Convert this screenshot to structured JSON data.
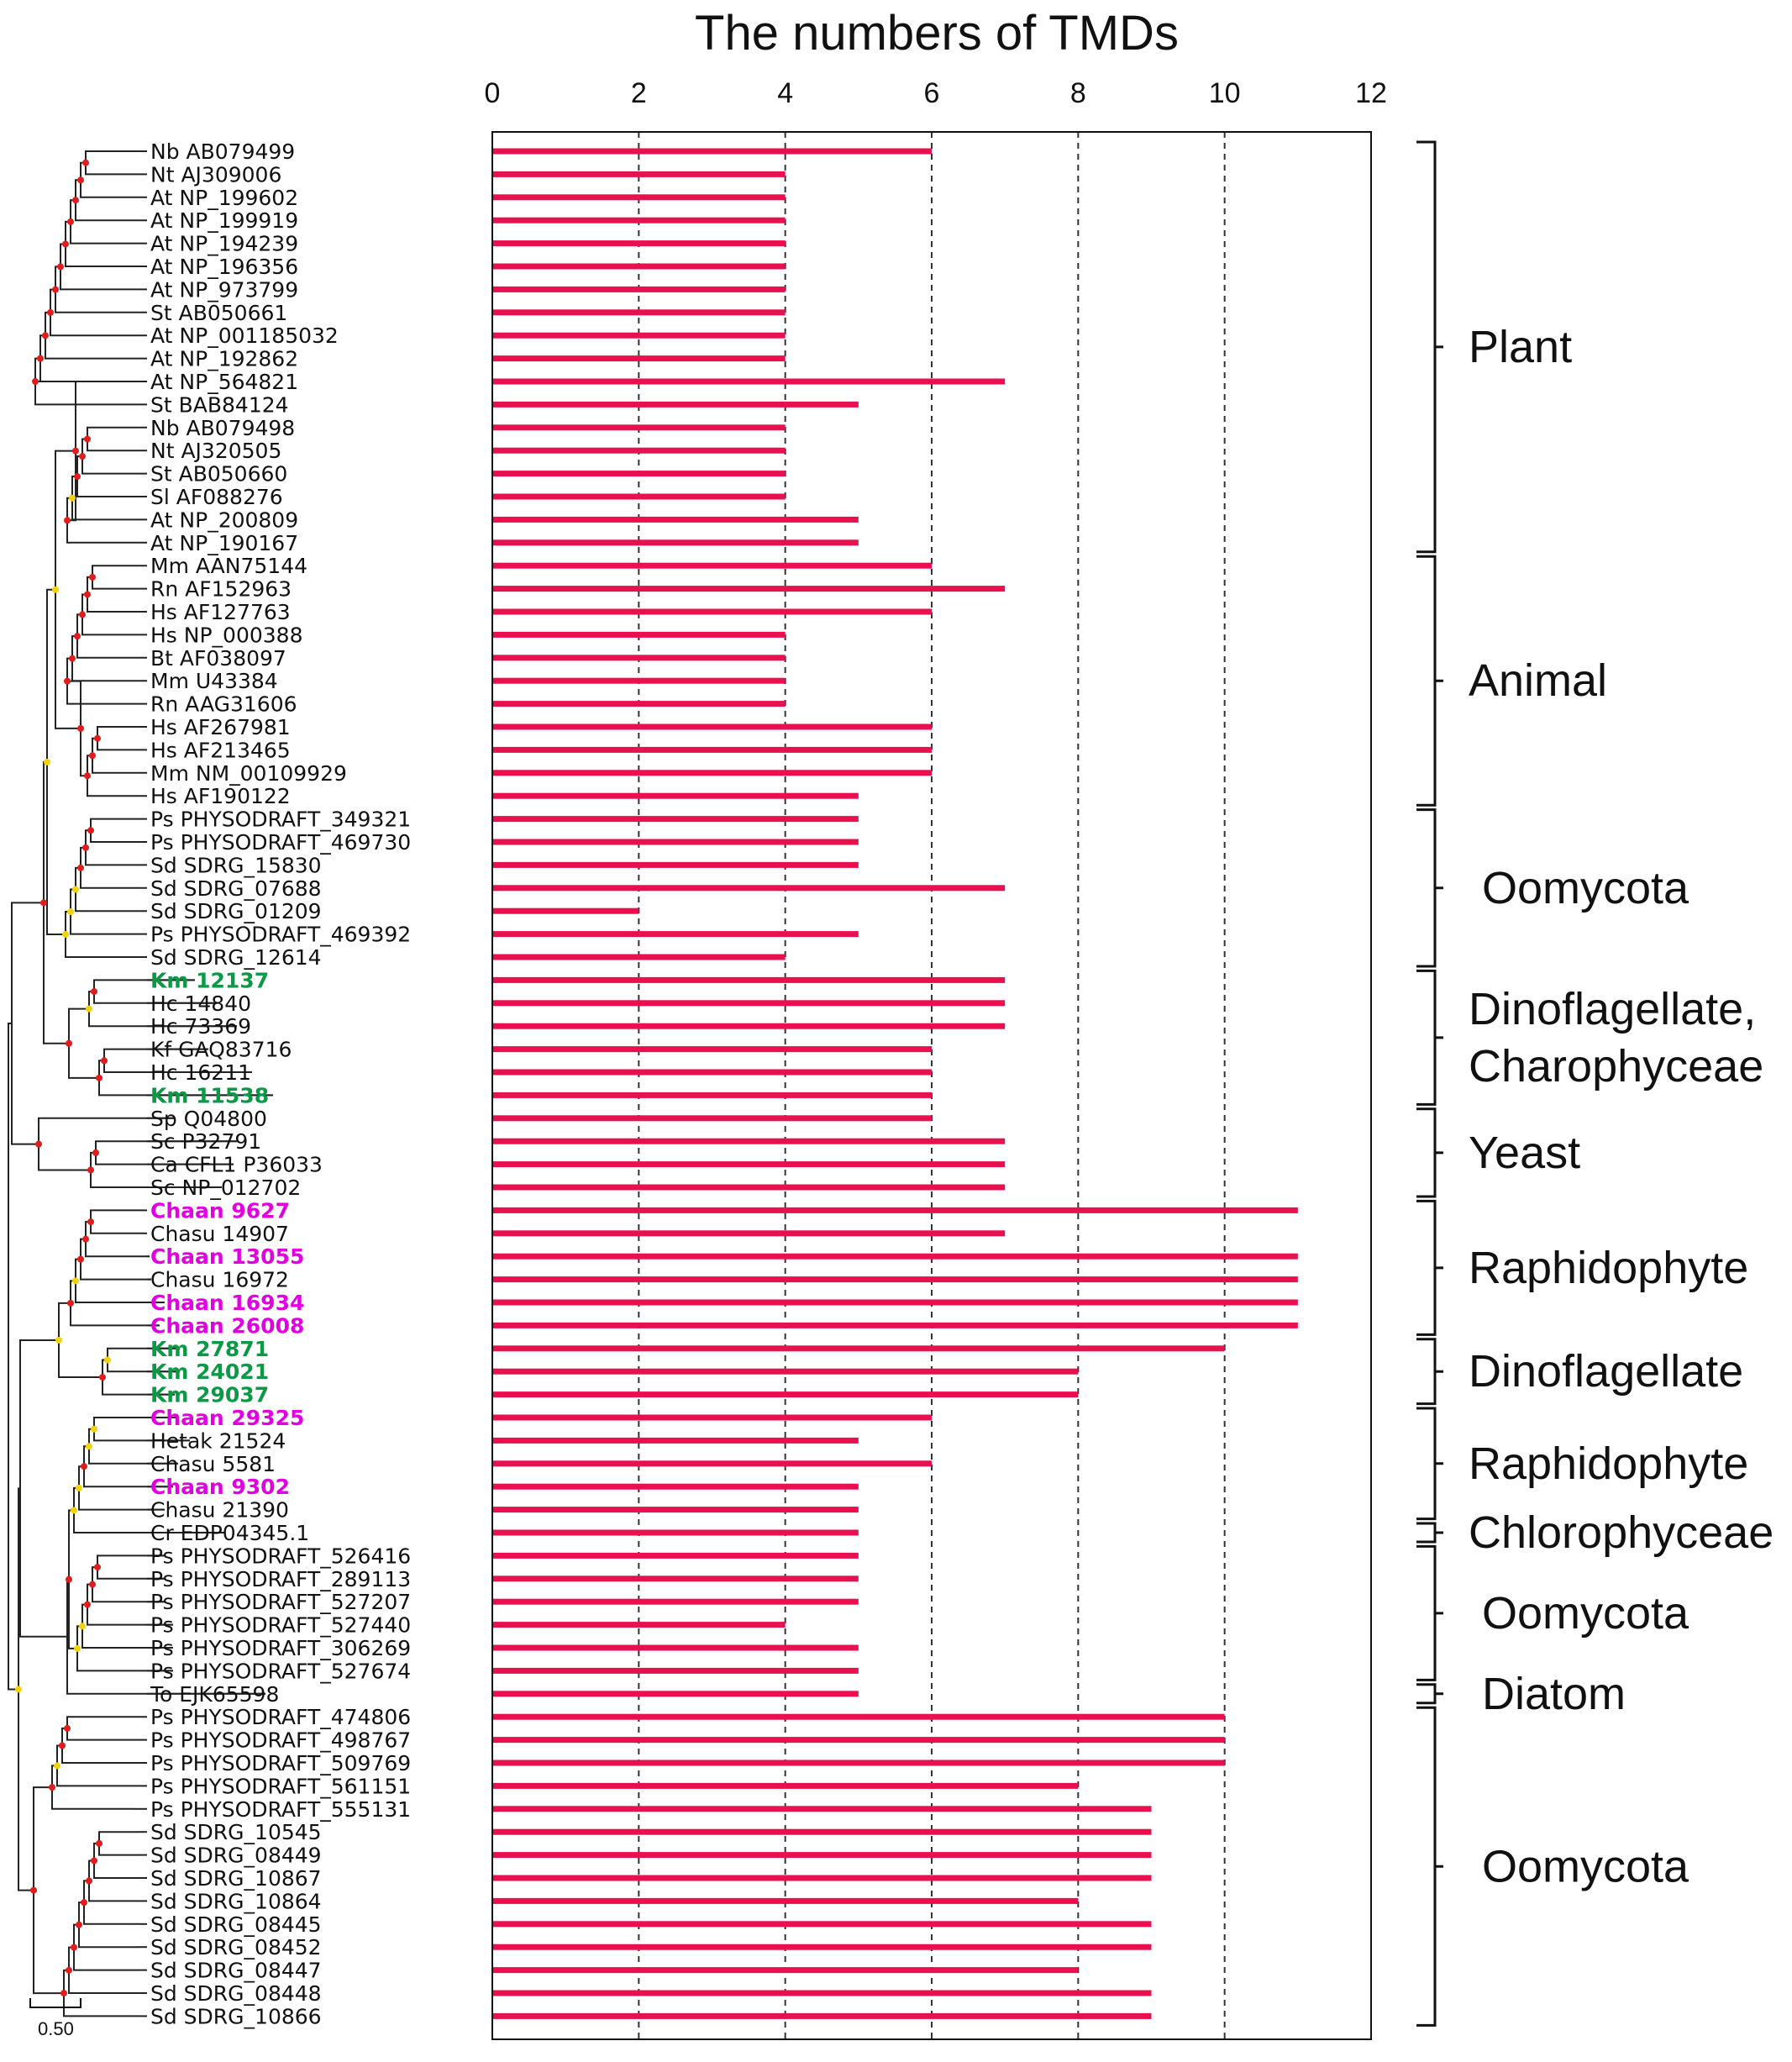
{
  "colors": {
    "bar": "#e8104e",
    "green": "#0a9a45",
    "magenta": "#e000e0",
    "node_red": "#e11c1c",
    "node_yellow": "#f2d20a",
    "text": "#111111"
  },
  "chart_data": {
    "type": "bar",
    "orientation": "horizontal",
    "title": "The  numbers  of TMDs",
    "xlabel": "",
    "ylabel": "",
    "xlim": [
      0,
      12
    ],
    "x_ticks": [
      "0",
      "2",
      "4",
      "6",
      "8",
      "10",
      "12"
    ],
    "grid": "vertical dashed at 2,4,6,8,10",
    "categories": [
      "Nb AB079499",
      "Nt AJ309006",
      "At NP_199602",
      "At NP_199919",
      "At NP_194239",
      "At NP_196356",
      "At NP_973799",
      "St AB050661",
      "At NP_001185032",
      "At NP_192862",
      "At NP_564821",
      "St BAB84124",
      "Nb AB079498",
      "Nt AJ320505",
      "St AB050660",
      "Sl AF088276",
      "At NP_200809",
      "At NP_190167",
      "Mm AAN75144",
      "Rn AF152963",
      "Hs AF127763",
      "Hs NP_000388",
      "Bt AF038097",
      "Mm U43384",
      "Rn AAG31606",
      "Hs AF267981",
      "Hs AF213465",
      "Mm NM_00109929",
      "Hs AF190122",
      "Ps PHYSODRAFT_349321",
      "Ps PHYSODRAFT_469730",
      "Sd SDRG_15830",
      "Sd SDRG_07688",
      "Sd SDRG_01209",
      "Ps PHYSODRAFT_469392",
      "Sd SDRG_12614",
      "Km 12137",
      "Hc 14840",
      "Hc 73369",
      "Kf GAQ83716",
      "Hc 16211",
      "Km 11538",
      "Sp Q04800",
      "Sc P32791",
      "Ca CFL1 P36033",
      "Sc NP_012702",
      "Chaan 9627",
      "Chasu 14907",
      "Chaan 13055",
      "Chasu 16972",
      "Chaan 16934",
      "Chaan 26008",
      "Km 27871",
      "Km 24021",
      "Km 29037",
      "Chaan 29325",
      "Hetak 21524",
      "Chasu 5581",
      "Chaan 9302",
      "Chasu 21390",
      "Cr EDP04345.1",
      "Ps PHYSODRAFT_526416",
      "Ps PHYSODRAFT_289113",
      "Ps PHYSODRAFT_527207",
      "Ps PHYSODRAFT_527440",
      "Ps PHYSODRAFT_306269",
      "Ps PHYSODRAFT_527674",
      "To EJK65598",
      "Ps PHYSODRAFT_474806",
      "Ps PHYSODRAFT_498767",
      "Ps PHYSODRAFT_509769",
      "Ps PHYSODRAFT_561151",
      "Ps PHYSODRAFT_555131",
      "Sd SDRG_10545",
      "Sd SDRG_08449",
      "Sd SDRG_10867",
      "Sd SDRG_10864",
      "Sd SDRG_08445",
      "Sd SDRG_08452",
      "Sd SDRG_08447",
      "Sd SDRG_08448",
      "Sd SDRG_10866"
    ],
    "values": [
      6,
      4,
      4,
      4,
      4,
      4,
      4,
      4,
      4,
      4,
      7,
      5,
      4,
      4,
      4,
      4,
      5,
      5,
      6,
      7,
      6,
      4,
      4,
      4,
      4,
      6,
      6,
      6,
      5,
      5,
      5,
      5,
      7,
      2,
      5,
      4,
      7,
      7,
      7,
      6,
      6,
      6,
      6,
      7,
      7,
      7,
      11,
      7,
      11,
      11,
      11,
      11,
      10,
      8,
      8,
      6,
      5,
      6,
      5,
      5,
      5,
      5,
      5,
      5,
      4,
      5,
      5,
      5,
      10,
      10,
      10,
      8,
      9,
      9,
      9,
      9,
      8,
      9,
      9,
      8,
      9,
      9
    ],
    "label_colors": {
      "green": [
        "Km 12137",
        "Km 11538",
        "Km 27871",
        "Km 24021",
        "Km 29037"
      ],
      "magenta": [
        "Chaan 9627",
        "Chaan 13055",
        "Chaan 16934",
        "Chaan 26008",
        "Chaan 29325",
        "Chaan 9302"
      ]
    },
    "groups": [
      {
        "label": "Plant",
        "first": 0,
        "last": 17
      },
      {
        "label": "Animal",
        "first": 18,
        "last": 28
      },
      {
        "label": "Oomycota",
        "first": 29,
        "last": 35
      },
      {
        "label": "Dinoflagellate,\nCharophyceae",
        "first": 36,
        "last": 41
      },
      {
        "label": "Yeast",
        "first": 42,
        "last": 45
      },
      {
        "label": "Raphidophyte",
        "first": 46,
        "last": 51
      },
      {
        "label": "Dinoflagellate",
        "first": 52,
        "last": 54
      },
      {
        "label": "Raphidophyte",
        "first": 55,
        "last": 59
      },
      {
        "label": "Chlorophyceae",
        "first": 60,
        "last": 60
      },
      {
        "label": "Oomycota",
        "first": 61,
        "last": 66
      },
      {
        "label": "Diatom",
        "first": 67,
        "last": 67
      },
      {
        "label": "Oomycota",
        "first": 68,
        "last": 81
      }
    ],
    "tree_scale_label": "0.50"
  }
}
